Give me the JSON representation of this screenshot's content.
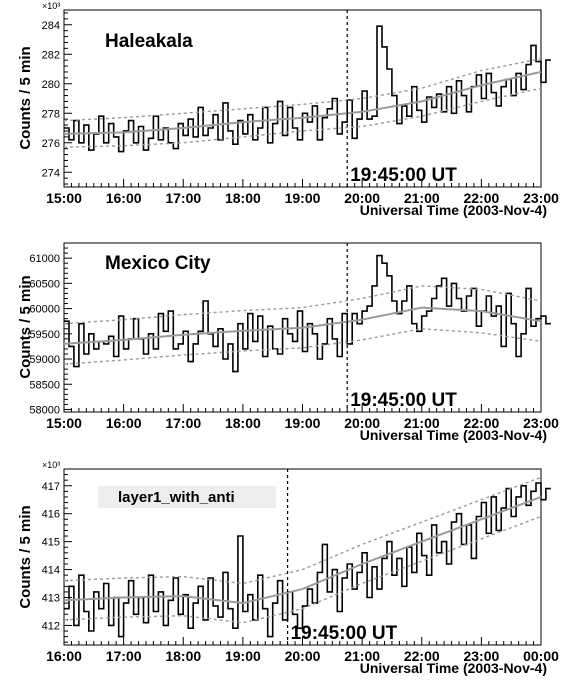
{
  "chart_data": [
    {
      "type": "line",
      "title": "Haleakala",
      "xlabel": "Universal Time (2003-Nov-4)",
      "ylabel": "Counts / 5 min",
      "y_multiplier": "×10³",
      "event_label": "19:45:00 UT",
      "event_time": 19.75,
      "xlim": [
        15,
        23
      ],
      "ylim": [
        273,
        285
      ],
      "x_ticks": [
        15,
        16,
        17,
        18,
        19,
        20,
        21,
        22,
        23
      ],
      "x_tick_labels": [
        "15:00",
        "16:00",
        "17:00",
        "18:00",
        "19:00",
        "20:00",
        "21:00",
        "22:00",
        "23:00"
      ],
      "y_ticks": [
        274,
        276,
        278,
        280,
        282,
        284
      ],
      "y_tick_labels": [
        "274",
        "276",
        "278",
        "280",
        "282",
        "284"
      ],
      "bin_hours": 0.08333,
      "series": [
        {
          "style": "step",
          "color": "#000000",
          "values": [
            277.0,
            276.2,
            277.5,
            276.0,
            277.2,
            275.5,
            276.6,
            277.8,
            276.0,
            277.3,
            276.4,
            275.4,
            276.8,
            277.5,
            276.0,
            277.1,
            275.5,
            276.3,
            277.8,
            276.2,
            277.0,
            276.0,
            275.6,
            277.3,
            276.5,
            277.6,
            276.4,
            278.4,
            276.5,
            277.0,
            277.9,
            276.2,
            278.7,
            276.8,
            275.9,
            277.5,
            276.6,
            277.9,
            276.2,
            277.0,
            278.4,
            276.0,
            277.3,
            278.8,
            276.5,
            278.4,
            277.0,
            276.2,
            278.0,
            277.4,
            278.5,
            276.2,
            277.7,
            278.3,
            279.0,
            276.6,
            277.4,
            278.9,
            276.3,
            277.6,
            279.5,
            277.6,
            277.8,
            283.9,
            282.5,
            281.0,
            279.2,
            277.3,
            278.5,
            277.8,
            279.8,
            278.2,
            277.4,
            279.1,
            278.4,
            279.3,
            278.1,
            279.8,
            278.0,
            280.2,
            279.2,
            278.1,
            279.8,
            280.6,
            279.0,
            280.7,
            279.4,
            278.5,
            279.8,
            280.3,
            279.2,
            280.7,
            279.6,
            281.3,
            282.6,
            281.5,
            280.1,
            281.6
          ]
        },
        {
          "style": "line",
          "color": "#9a9a9a",
          "x": [
            15,
            16,
            17,
            18,
            19,
            20,
            21,
            22,
            23
          ],
          "values": [
            276.6,
            276.7,
            277.0,
            277.4,
            277.7,
            278.1,
            278.8,
            279.9,
            280.8
          ]
        },
        {
          "style": "dashed",
          "color": "#9a9a9a",
          "x": [
            15,
            16,
            17,
            18,
            19,
            20,
            21,
            22,
            23
          ],
          "values": [
            277.5,
            277.7,
            278.0,
            278.3,
            278.6,
            279.0,
            279.7,
            280.9,
            281.7
          ]
        },
        {
          "style": "dashed",
          "color": "#9a9a9a",
          "x": [
            15,
            16,
            17,
            18,
            19,
            20,
            21,
            22,
            23
          ],
          "values": [
            275.7,
            275.8,
            276.0,
            276.4,
            276.8,
            277.1,
            277.8,
            278.8,
            279.7
          ]
        }
      ]
    },
    {
      "type": "line",
      "title": "Mexico City",
      "xlabel": "Universal Time (2003-Nov-4)",
      "ylabel": "Counts / 5 min",
      "y_multiplier": "",
      "event_label": "19:45:00 UT",
      "event_time": 19.75,
      "xlim": [
        15,
        23
      ],
      "ylim": [
        57950,
        61300
      ],
      "x_ticks": [
        15,
        16,
        17,
        18,
        19,
        20,
        21,
        22,
        23
      ],
      "x_tick_labels": [
        "15:00",
        "16:00",
        "17:00",
        "18:00",
        "19:00",
        "20:00",
        "21:00",
        "22:00",
        "23:00"
      ],
      "y_ticks": [
        58000,
        58500,
        59000,
        59500,
        60000,
        60500,
        61000
      ],
      "y_tick_labels": [
        "58000",
        "58500",
        "59000",
        "59500",
        "60000",
        "60500",
        "61000"
      ],
      "bin_hours": 0.08333,
      "series": [
        {
          "style": "step",
          "color": "#000000",
          "values": [
            59750,
            59250,
            58850,
            59700,
            59100,
            59500,
            59200,
            59350,
            59300,
            59450,
            59050,
            59850,
            59200,
            59400,
            59800,
            59400,
            59100,
            59500,
            59200,
            59900,
            59550,
            59950,
            59200,
            59300,
            59550,
            58950,
            59300,
            59550,
            60150,
            59500,
            59250,
            59600,
            59000,
            59300,
            58750,
            59700,
            59200,
            59900,
            59350,
            59850,
            59050,
            59650,
            59200,
            59100,
            59800,
            59500,
            59350,
            59950,
            59150,
            59700,
            59500,
            59000,
            59300,
            59800,
            59400,
            59050,
            59900,
            59300,
            59900,
            59700,
            59950,
            60050,
            60450,
            61050,
            60900,
            60650,
            60150,
            59900,
            60150,
            60450,
            59700,
            59550,
            59850,
            59950,
            60200,
            60450,
            60600,
            60050,
            60500,
            60200,
            59950,
            60250,
            60400,
            59650,
            59950,
            60250,
            59850,
            60050,
            59250,
            60300,
            59700,
            59050,
            59500,
            60400,
            59650,
            59800,
            59850,
            59700
          ]
        },
        {
          "style": "line",
          "color": "#9a9a9a",
          "x": [
            15,
            16,
            17,
            18,
            19,
            20,
            21,
            22,
            23
          ],
          "values": [
            59300,
            59380,
            59480,
            59560,
            59620,
            59780,
            60020,
            59950,
            59750
          ]
        },
        {
          "style": "dashed",
          "color": "#9a9a9a",
          "x": [
            15,
            16,
            17,
            18,
            19,
            20,
            21,
            22,
            23
          ],
          "values": [
            59700,
            59780,
            59880,
            59960,
            60020,
            60200,
            60450,
            60380,
            60150
          ]
        },
        {
          "style": "dashed",
          "color": "#9a9a9a",
          "x": [
            15,
            16,
            17,
            18,
            19,
            20,
            21,
            22,
            23
          ],
          "values": [
            58900,
            58980,
            59080,
            59160,
            59220,
            59380,
            59600,
            59520,
            59350
          ]
        }
      ]
    },
    {
      "type": "line",
      "title": "layer1_with_anti",
      "xlabel": "Universal Time (2003-Nov-4)",
      "ylabel": "Counts / 5 min",
      "y_multiplier": "×10³",
      "event_label": "19:45:00 UT",
      "event_time": 19.75,
      "xlim": [
        16,
        24
      ],
      "ylim": [
        411.3,
        417.6
      ],
      "x_ticks": [
        16,
        17,
        18,
        19,
        20,
        21,
        22,
        23,
        24
      ],
      "x_tick_labels": [
        "16:00",
        "17:00",
        "18:00",
        "19:00",
        "20:00",
        "21:00",
        "22:00",
        "23:00",
        "00:00"
      ],
      "y_ticks": [
        412,
        413,
        414,
        415,
        416,
        417
      ],
      "y_tick_labels": [
        "412",
        "413",
        "414",
        "415",
        "416",
        "417"
      ],
      "bin_hours": 0.08333,
      "series": [
        {
          "style": "step",
          "color": "#000000",
          "values": [
            412.6,
            413.4,
            412.0,
            413.8,
            412.5,
            411.8,
            413.2,
            412.6,
            413.5,
            412.0,
            413.0,
            411.6,
            412.8,
            413.6,
            412.4,
            413.0,
            412.1,
            413.8,
            412.5,
            413.2,
            412.0,
            412.9,
            413.7,
            412.4,
            413.1,
            411.9,
            412.8,
            413.4,
            412.2,
            413.7,
            412.7,
            412.3,
            413.9,
            412.6,
            411.9,
            415.2,
            412.5,
            413.1,
            412.2,
            413.8,
            412.6,
            411.6,
            412.8,
            413.6,
            412.2,
            413.2,
            412.4,
            411.9,
            412.7,
            413.3,
            412.8,
            413.9,
            414.9,
            413.2,
            414.0,
            412.5,
            413.7,
            414.2,
            413.3,
            413.9,
            414.6,
            413.0,
            414.1,
            413.3,
            414.4,
            415.0,
            413.8,
            414.4,
            413.4,
            414.8,
            413.9,
            415.3,
            414.5,
            413.8,
            415.6,
            414.6,
            415.0,
            414.2,
            415.7,
            416.0,
            414.9,
            415.6,
            414.4,
            415.9,
            416.4,
            415.3,
            416.6,
            415.4,
            416.2,
            416.9,
            415.9,
            416.6,
            417.0,
            416.3,
            416.8,
            417.1,
            416.5,
            416.9
          ]
        },
        {
          "style": "line",
          "color": "#9a9a9a",
          "x": [
            16,
            17,
            18,
            19,
            20,
            21,
            22,
            23,
            24
          ],
          "values": [
            412.9,
            413.0,
            413.05,
            412.8,
            413.3,
            414.2,
            415.0,
            415.8,
            416.6
          ]
        },
        {
          "style": "dashed",
          "color": "#9a9a9a",
          "x": [
            16,
            17,
            18,
            19,
            20,
            21,
            22,
            23,
            24
          ],
          "values": [
            413.6,
            413.7,
            413.75,
            413.5,
            414.0,
            414.9,
            415.7,
            416.5,
            417.3
          ]
        },
        {
          "style": "dashed",
          "color": "#9a9a9a",
          "x": [
            16,
            17,
            18,
            19,
            20,
            21,
            22,
            23,
            24
          ],
          "values": [
            412.2,
            412.3,
            412.35,
            412.1,
            412.6,
            413.5,
            414.3,
            415.1,
            415.9
          ]
        }
      ]
    }
  ]
}
